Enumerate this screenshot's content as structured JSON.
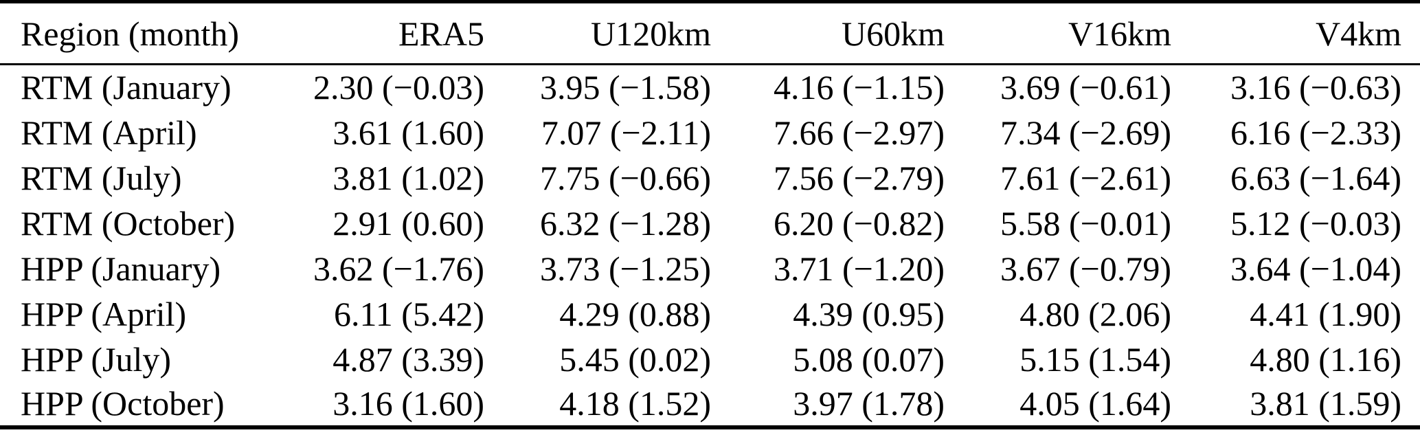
{
  "table": {
    "columns": [
      "Region (month)",
      "ERA5",
      "U120km",
      "U60km",
      "V16km",
      "V4km"
    ],
    "rows": [
      {
        "label": "RTM (January)",
        "values": [
          "2.30 (−0.03)",
          "3.95 (−1.58)",
          "4.16 (−1.15)",
          "3.69 (−0.61)",
          "3.16 (−0.63)"
        ]
      },
      {
        "label": "RTM (April)",
        "values": [
          "3.61 (1.60)",
          "7.07 (−2.11)",
          "7.66 (−2.97)",
          "7.34 (−2.69)",
          "6.16 (−2.33)"
        ]
      },
      {
        "label": "RTM (July)",
        "values": [
          "3.81 (1.02)",
          "7.75 (−0.66)",
          "7.56 (−2.79)",
          "7.61 (−2.61)",
          "6.63 (−1.64)"
        ]
      },
      {
        "label": "RTM (October)",
        "values": [
          "2.91 (0.60)",
          "6.32 (−1.28)",
          "6.20 (−0.82)",
          "5.58 (−0.01)",
          "5.12 (−0.03)"
        ]
      },
      {
        "label": "HPP (January)",
        "values": [
          "3.62 (−1.76)",
          "3.73 (−1.25)",
          "3.71 (−1.20)",
          "3.67 (−0.79)",
          "3.64 (−1.04)"
        ]
      },
      {
        "label": "HPP (April)",
        "values": [
          "6.11 (5.42)",
          "4.29 (0.88)",
          "4.39 (0.95)",
          "4.80 (2.06)",
          "4.41 (1.90)"
        ]
      },
      {
        "label": "HPP (July)",
        "values": [
          "4.87 (3.39)",
          "5.45 (0.02)",
          "5.08 (0.07)",
          "5.15 (1.54)",
          "4.80 (1.16)"
        ]
      },
      {
        "label": "HPP (October)",
        "values": [
          "3.16 (1.60)",
          "4.18 (1.52)",
          "3.97 (1.78)",
          "4.05 (1.64)",
          "3.81 (1.59)"
        ]
      }
    ],
    "colors": {
      "text": "#000000",
      "background": "#ffffff",
      "rule": "#000000"
    }
  },
  "chart_data": {
    "type": "table",
    "columns": [
      "Region (month)",
      "ERA5",
      "U120km",
      "U60km",
      "V16km",
      "V4km"
    ],
    "rows": [
      [
        "RTM (January)",
        "2.30 (−0.03)",
        "3.95 (−1.58)",
        "4.16 (−1.15)",
        "3.69 (−0.61)",
        "3.16 (−0.63)"
      ],
      [
        "RTM (April)",
        "3.61 (1.60)",
        "7.07 (−2.11)",
        "7.66 (−2.97)",
        "7.34 (−2.69)",
        "6.16 (−2.33)"
      ],
      [
        "RTM (July)",
        "3.81 (1.02)",
        "7.75 (−0.66)",
        "7.56 (−2.79)",
        "7.61 (−2.61)",
        "6.63 (−1.64)"
      ],
      [
        "RTM (October)",
        "2.91 (0.60)",
        "6.32 (−1.28)",
        "6.20 (−0.82)",
        "5.58 (−0.01)",
        "5.12 (−0.03)"
      ],
      [
        "HPP (January)",
        "3.62 (−1.76)",
        "3.73 (−1.25)",
        "3.71 (−1.20)",
        "3.67 (−0.79)",
        "3.64 (−1.04)"
      ],
      [
        "HPP (April)",
        "6.11 (5.42)",
        "4.29 (0.88)",
        "4.39 (0.95)",
        "4.80 (2.06)",
        "4.41 (1.90)"
      ],
      [
        "HPP (July)",
        "4.87 (3.39)",
        "5.45 (0.02)",
        "5.08 (0.07)",
        "5.15 (1.54)",
        "4.80 (1.16)"
      ],
      [
        "HPP (October)",
        "3.16 (1.60)",
        "4.18 (1.52)",
        "3.97 (1.78)",
        "4.05 (1.64)",
        "3.81 (1.59)"
      ]
    ]
  }
}
